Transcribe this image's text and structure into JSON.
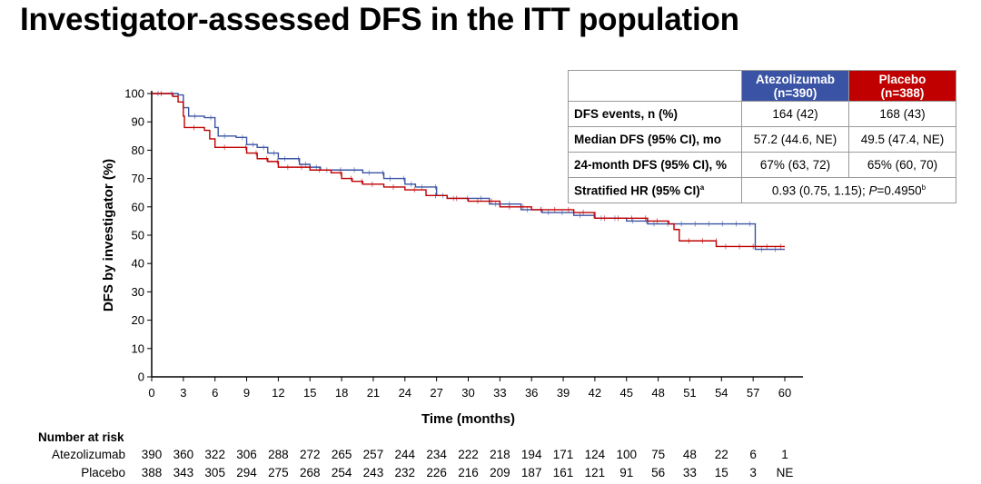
{
  "title": "Investigator-assessed DFS in the ITT population",
  "table": {
    "headers": [
      {
        "label": "Atezolizumab",
        "n": "(n=390)",
        "color": "#3a53a4"
      },
      {
        "label": "Placebo",
        "n": "(n=388)",
        "color": "#c00000"
      }
    ],
    "rows": [
      {
        "label": "DFS events, n (%)",
        "values": [
          "164 (42)",
          "168 (43)"
        ]
      },
      {
        "label": "Median DFS (95% CI), mo",
        "values": [
          "57.2 (44.6, NE)",
          "49.5 (47.4, NE)"
        ]
      },
      {
        "label": "24-month DFS (95% CI), %",
        "values": [
          "67% (63, 72)",
          "65% (60, 70)"
        ]
      }
    ],
    "hr": {
      "label": "Stratified HR (95% CI)",
      "label_sup": "a",
      "value": "0.93 (0.75, 1.15); ",
      "p_label": "P",
      "p_value": "=0.4950",
      "p_sup": "b"
    }
  },
  "chart_data": {
    "type": "line",
    "xlabel": "Time (months)",
    "ylabel": "DFS by investigator (%)",
    "xlim": [
      0,
      60
    ],
    "ylim": [
      0,
      100
    ],
    "xticks": [
      0,
      3,
      6,
      9,
      12,
      15,
      18,
      21,
      24,
      27,
      30,
      33,
      36,
      39,
      42,
      45,
      48,
      51,
      54,
      57,
      60
    ],
    "yticks": [
      0,
      10,
      20,
      30,
      40,
      50,
      60,
      70,
      80,
      90,
      100
    ],
    "step": true,
    "series": [
      {
        "name": "Atezolizumab",
        "color": "#3a53a4",
        "points": [
          [
            0,
            100
          ],
          [
            2.5,
            99.5
          ],
          [
            3,
            95
          ],
          [
            3.5,
            92
          ],
          [
            5,
            91.5
          ],
          [
            6,
            88
          ],
          [
            6.3,
            85
          ],
          [
            8,
            84.5
          ],
          [
            9,
            82
          ],
          [
            10,
            81
          ],
          [
            11,
            79
          ],
          [
            12,
            77
          ],
          [
            14,
            75
          ],
          [
            15,
            74
          ],
          [
            16,
            73
          ],
          [
            20,
            72
          ],
          [
            22,
            70
          ],
          [
            24,
            68
          ],
          [
            25,
            67
          ],
          [
            27,
            64
          ],
          [
            28,
            63
          ],
          [
            32,
            61
          ],
          [
            35,
            59
          ],
          [
            37,
            58
          ],
          [
            40,
            57
          ],
          [
            42,
            56
          ],
          [
            45,
            55
          ],
          [
            47,
            54
          ],
          [
            57.2,
            45
          ],
          [
            60,
            45
          ]
        ]
      },
      {
        "name": "Placebo",
        "color": "#c00000",
        "points": [
          [
            0,
            100
          ],
          [
            2,
            99
          ],
          [
            2.5,
            97
          ],
          [
            3,
            92
          ],
          [
            3.1,
            88
          ],
          [
            5,
            87
          ],
          [
            5.5,
            84
          ],
          [
            6,
            81
          ],
          [
            8,
            81
          ],
          [
            9,
            79
          ],
          [
            10,
            77
          ],
          [
            11,
            76
          ],
          [
            12,
            74
          ],
          [
            15,
            73
          ],
          [
            17,
            72
          ],
          [
            18,
            70
          ],
          [
            19,
            69
          ],
          [
            20,
            68
          ],
          [
            22,
            67
          ],
          [
            24,
            66
          ],
          [
            26,
            64
          ],
          [
            28,
            63
          ],
          [
            30,
            62
          ],
          [
            33,
            60
          ],
          [
            36,
            59
          ],
          [
            40,
            58
          ],
          [
            42,
            56
          ],
          [
            47,
            55
          ],
          [
            49,
            54
          ],
          [
            49.5,
            52
          ],
          [
            50,
            48
          ],
          [
            53.5,
            46
          ],
          [
            60,
            46
          ]
        ]
      }
    ],
    "at_risk": {
      "title": "Number at risk",
      "rows": [
        {
          "name": "Atezolizumab",
          "values": [
            "390",
            "360",
            "322",
            "306",
            "288",
            "272",
            "265",
            "257",
            "244",
            "234",
            "222",
            "218",
            "194",
            "171",
            "124",
            "100",
            "75",
            "48",
            "22",
            "6",
            "1"
          ]
        },
        {
          "name": "Placebo",
          "values": [
            "388",
            "343",
            "305",
            "294",
            "275",
            "268",
            "254",
            "243",
            "232",
            "226",
            "216",
            "209",
            "187",
            "161",
            "121",
            "91",
            "56",
            "33",
            "15",
            "3",
            "NE"
          ]
        }
      ]
    }
  }
}
